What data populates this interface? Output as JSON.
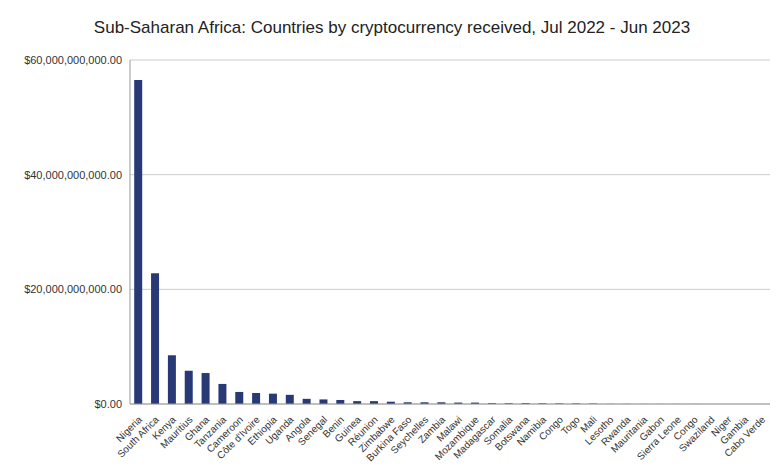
{
  "chart_data": {
    "type": "bar",
    "title": "Sub-Saharan Africa: Countries by cryptocurrency received, Jul 2022 - Jun 2023",
    "categories": [
      "Nigeria",
      "South Africa",
      "Kenya",
      "Mauritius",
      "Ghana",
      "Tanzania",
      "Cameroon",
      "Côte d'Ivoire",
      "Ethiopia",
      "Uganda",
      "Angola",
      "Senegal",
      "Benin",
      "Guinea",
      "Réunion",
      "Zimbabwe",
      "Burkina Faso",
      "Seychelles",
      "Zambia",
      "Malawi",
      "Mozambique",
      "Madagascar",
      "Somalia",
      "Botswana",
      "Namibia",
      "Congo",
      "Togo",
      "Mali",
      "Lesotho",
      "Rwanda",
      "Mauritania",
      "Gabon",
      "Sierra Leone",
      "Congo",
      "Swaziland",
      "Niger",
      "Gambia",
      "Cabo Verde"
    ],
    "values": [
      56500000000,
      22800000000,
      8500000000,
      5800000000,
      5400000000,
      3500000000,
      2100000000,
      1900000000,
      1800000000,
      1600000000,
      900000000,
      800000000,
      700000000,
      500000000,
      500000000,
      400000000,
      300000000,
      300000000,
      300000000,
      250000000,
      250000000,
      150000000,
      150000000,
      150000000,
      120000000,
      100000000,
      100000000,
      80000000,
      20000000,
      20000000,
      10000000,
      10000000,
      10000000,
      10000000,
      5000000,
      5000000,
      5000000,
      3000000
    ],
    "color": "#283a75",
    "ylim": [
      0,
      60000000000
    ],
    "yticks": [
      {
        "value": 0,
        "label": "$0.00"
      },
      {
        "value": 20000000000,
        "label": "$20,000,000,000.00"
      },
      {
        "value": 40000000000,
        "label": "$40,000,000,000.00"
      },
      {
        "value": 60000000000,
        "label": "$60,000,000,000.00"
      }
    ],
    "grid": true
  }
}
